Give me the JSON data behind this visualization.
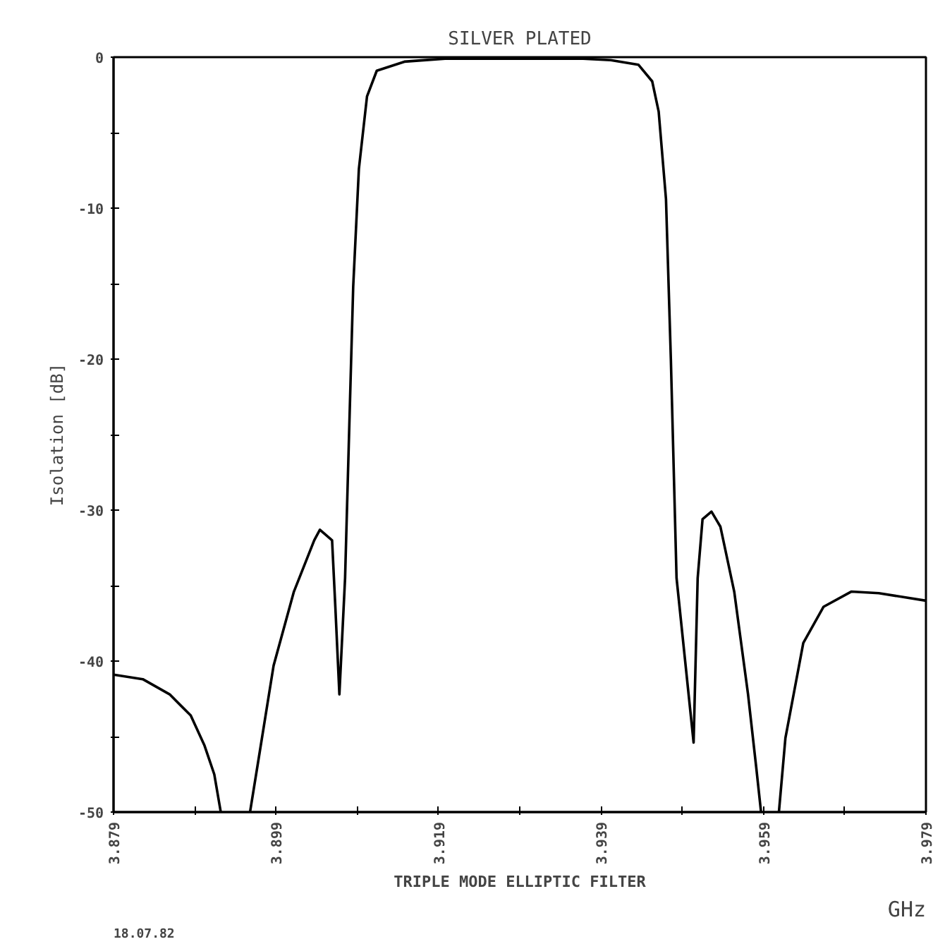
{
  "chart_data": {
    "type": "line",
    "title": "SILVER PLATED",
    "ylabel": "Isolation [dB]",
    "xlabel": "GHz",
    "annotations": [
      "TRIPLE MODE ELLIPTIC FILTER",
      "18.07.82"
    ],
    "x": [
      3.879,
      3.8826,
      3.8859,
      3.8885,
      3.8902,
      3.8914,
      3.8922,
      3.894,
      3.8958,
      3.897,
      3.8987,
      3.9012,
      3.9037,
      3.9044,
      3.9059,
      3.9063,
      3.9068,
      3.9075,
      3.908,
      3.9085,
      3.9092,
      3.9102,
      3.9114,
      3.9148,
      3.9198,
      3.9368,
      3.9402,
      3.9436,
      3.9453,
      3.9461,
      3.947,
      3.9476,
      3.9483,
      3.9504,
      3.9509,
      3.9515,
      3.9526,
      3.9537,
      3.9554,
      3.9571,
      3.9581,
      3.9587,
      3.96,
      3.9609,
      3.9617,
      3.9639,
      3.9664,
      3.9698,
      3.9732,
      3.979
    ],
    "series": [
      {
        "color": "#000000",
        "values": [
          -40.9,
          -41.2,
          -42.2,
          -43.6,
          -45.6,
          -47.5,
          -50,
          null,
          -50,
          -46,
          -40.3,
          -35.4,
          -32.0,
          -31.3,
          -32.0,
          -36.4,
          -42.2,
          -34.5,
          -24.8,
          -15.2,
          -7.4,
          -2.6,
          -0.9,
          -0.3,
          -0.1,
          -0.1,
          -0.2,
          -0.5,
          -1.6,
          -3.6,
          -9.4,
          -20,
          -34.5,
          -45.4,
          -34.5,
          -30.6,
          -30.1,
          -31.1,
          -35.4,
          -42.2,
          -47,
          -50,
          null,
          -50,
          -45.1,
          -38.8,
          -36.4,
          -35.4,
          -35.5,
          -36.0
        ]
      }
    ],
    "xlim": [
      3.879,
      3.979
    ],
    "xticks": [
      3.879,
      {
        "value": 3.889,
        "label": null
      },
      3.899,
      {
        "value": 3.909,
        "label": null
      },
      3.919,
      {
        "value": 3.929,
        "label": null
      },
      3.939,
      {
        "value": 3.949,
        "label": null
      },
      3.959,
      {
        "value": 3.969,
        "label": null
      },
      3.979
    ],
    "ylim": [
      -50,
      0
    ],
    "yticks": [
      -50,
      {
        "value": -45,
        "label": null
      },
      -40,
      {
        "value": -35,
        "label": null
      },
      -30,
      {
        "value": -25,
        "label": null
      },
      -20,
      {
        "value": -15,
        "label": null
      },
      -10,
      {
        "value": -5,
        "label": null
      },
      0
    ],
    "grid": false,
    "marker": "none",
    "line_style": "solid"
  }
}
